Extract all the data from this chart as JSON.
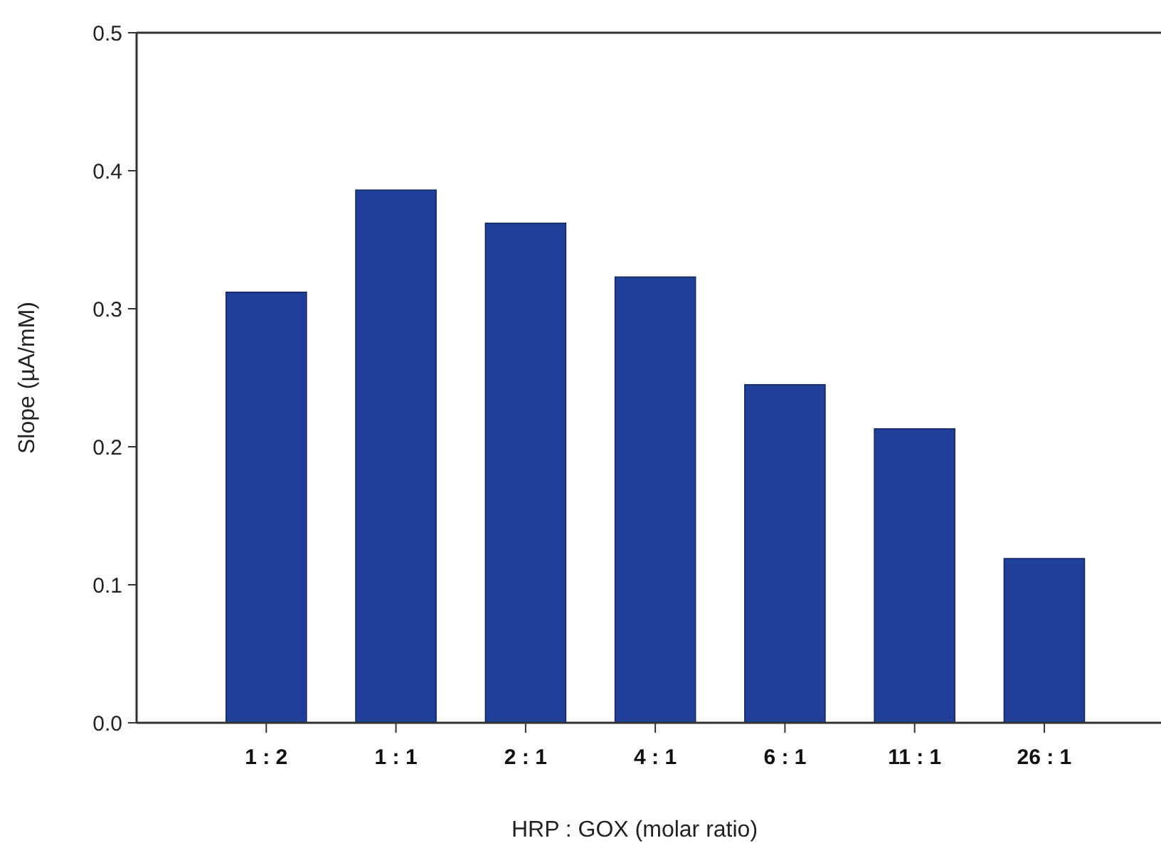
{
  "chart_data": {
    "type": "bar",
    "xlabel": "HRP : GOX (molar ratio)",
    "ylabel": "Slope (µA/mM)",
    "categories": [
      "1 : 2",
      "1 : 1",
      "2 : 1",
      "4 : 1",
      "6 : 1",
      "11 : 1",
      "26 : 1"
    ],
    "values": [
      0.312,
      0.386,
      0.362,
      0.323,
      0.245,
      0.213,
      0.119
    ],
    "color": "#1f3f99",
    "ylim": [
      0,
      0.5
    ],
    "yticks": [
      {
        "value": 0,
        "label": "0.0"
      },
      0.1,
      0.2,
      0.3,
      0.4,
      0.5
    ],
    "grid": false
  }
}
